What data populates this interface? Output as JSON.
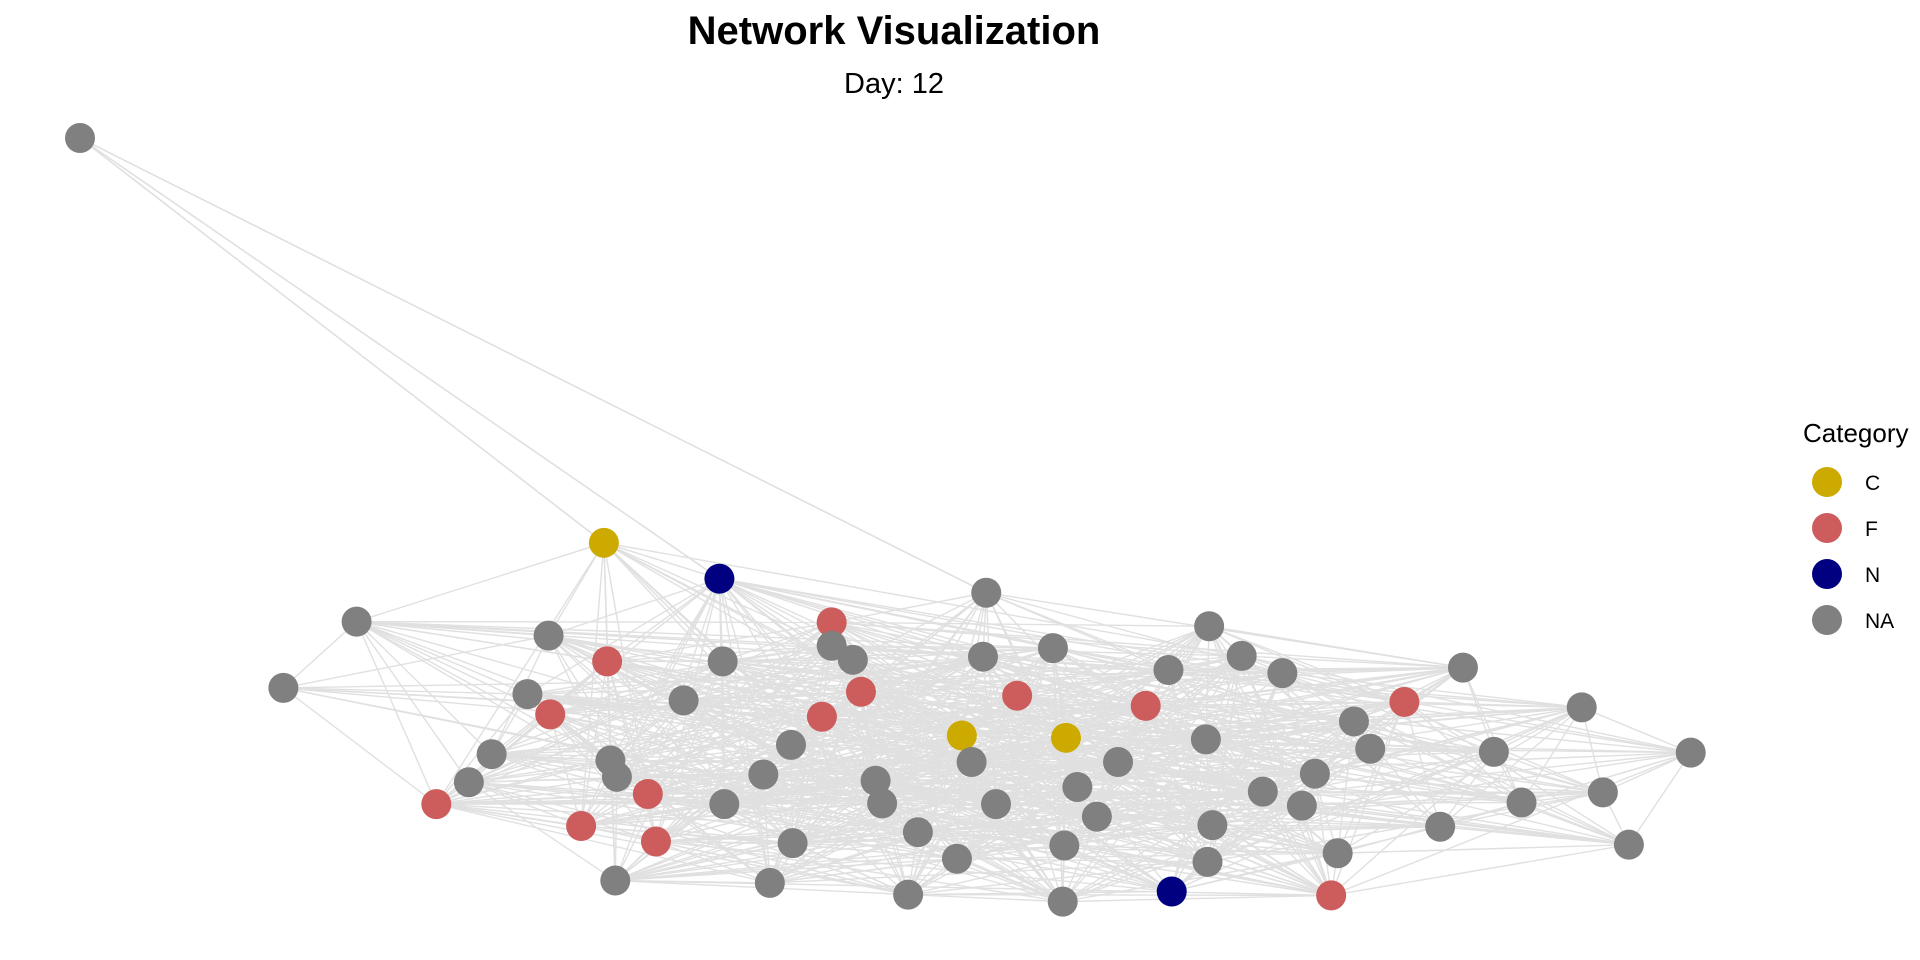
{
  "chart_data": {
    "type": "network",
    "title": "Network Visualization",
    "subtitle": "Day: 12",
    "legend": {
      "title": "Category",
      "position": "right",
      "entries": [
        {
          "label": "C",
          "color": "#CCAA00"
        },
        {
          "label": "F",
          "color": "#CD5C5C"
        },
        {
          "label": "N",
          "color": "#000080"
        },
        {
          "label": "NA",
          "color": "#808080"
        }
      ]
    },
    "edge_color": "#E0E0E0",
    "x_range": [
      0,
      100
    ],
    "y_range": [
      0,
      100
    ],
    "nodes": [
      {
        "id": 1,
        "x": 0.0,
        "y": 100.0,
        "category": "NA"
      },
      {
        "id": 2,
        "x": 32.2,
        "y": 48.1,
        "category": "C"
      },
      {
        "id": 3,
        "x": 39.3,
        "y": 43.5,
        "category": "N"
      },
      {
        "id": 4,
        "x": 55.7,
        "y": 41.7,
        "category": "NA"
      },
      {
        "id": 5,
        "x": 17.0,
        "y": 38.0,
        "category": "NA"
      },
      {
        "id": 6,
        "x": 28.8,
        "y": 36.2,
        "category": "NA"
      },
      {
        "id": 7,
        "x": 46.2,
        "y": 37.9,
        "category": "F"
      },
      {
        "id": 8,
        "x": 46.2,
        "y": 34.9,
        "category": "NA"
      },
      {
        "id": 9,
        "x": 69.4,
        "y": 37.4,
        "category": "NA"
      },
      {
        "id": 10,
        "x": 12.5,
        "y": 29.5,
        "category": "NA"
      },
      {
        "id": 11,
        "x": 32.4,
        "y": 32.9,
        "category": "F"
      },
      {
        "id": 12,
        "x": 39.5,
        "y": 32.9,
        "category": "NA"
      },
      {
        "id": 13,
        "x": 47.5,
        "y": 33.1,
        "category": "NA"
      },
      {
        "id": 14,
        "x": 55.5,
        "y": 33.5,
        "category": "NA"
      },
      {
        "id": 15,
        "x": 59.8,
        "y": 34.6,
        "category": "NA"
      },
      {
        "id": 16,
        "x": 71.4,
        "y": 33.6,
        "category": "NA"
      },
      {
        "id": 17,
        "x": 73.9,
        "y": 31.4,
        "category": "NA"
      },
      {
        "id": 18,
        "x": 85.0,
        "y": 32.1,
        "category": "NA"
      },
      {
        "id": 19,
        "x": 27.5,
        "y": 28.7,
        "category": "NA"
      },
      {
        "id": 20,
        "x": 48.0,
        "y": 29.0,
        "category": "F"
      },
      {
        "id": 21,
        "x": 57.6,
        "y": 28.5,
        "category": "F"
      },
      {
        "id": 22,
        "x": 66.9,
        "y": 31.8,
        "category": "NA"
      },
      {
        "id": 23,
        "x": 37.1,
        "y": 27.9,
        "category": "NA"
      },
      {
        "id": 24,
        "x": 65.5,
        "y": 27.2,
        "category": "F"
      },
      {
        "id": 25,
        "x": 81.4,
        "y": 27.7,
        "category": "F"
      },
      {
        "id": 26,
        "x": 92.3,
        "y": 27.0,
        "category": "NA"
      },
      {
        "id": 27,
        "x": 28.9,
        "y": 26.1,
        "category": "F"
      },
      {
        "id": 28,
        "x": 45.6,
        "y": 25.8,
        "category": "F"
      },
      {
        "id": 29,
        "x": 54.2,
        "y": 23.4,
        "category": "C"
      },
      {
        "id": 30,
        "x": 60.6,
        "y": 23.1,
        "category": "C"
      },
      {
        "id": 31,
        "x": 78.3,
        "y": 25.2,
        "category": "NA"
      },
      {
        "id": 32,
        "x": 25.3,
        "y": 21.0,
        "category": "NA"
      },
      {
        "id": 33,
        "x": 43.7,
        "y": 22.2,
        "category": "NA"
      },
      {
        "id": 34,
        "x": 69.2,
        "y": 22.9,
        "category": "NA"
      },
      {
        "id": 35,
        "x": 79.3,
        "y": 21.7,
        "category": "NA"
      },
      {
        "id": 36,
        "x": 86.9,
        "y": 21.3,
        "category": "NA"
      },
      {
        "id": 37,
        "x": 99.0,
        "y": 21.2,
        "category": "NA"
      },
      {
        "id": 38,
        "x": 32.6,
        "y": 20.2,
        "category": "NA"
      },
      {
        "id": 39,
        "x": 54.8,
        "y": 20.0,
        "category": "NA"
      },
      {
        "id": 40,
        "x": 63.8,
        "y": 20.0,
        "category": "NA"
      },
      {
        "id": 41,
        "x": 23.9,
        "y": 17.4,
        "category": "NA"
      },
      {
        "id": 42,
        "x": 33.0,
        "y": 18.1,
        "category": "NA"
      },
      {
        "id": 43,
        "x": 42.0,
        "y": 18.4,
        "category": "NA"
      },
      {
        "id": 44,
        "x": 48.9,
        "y": 17.6,
        "category": "NA"
      },
      {
        "id": 45,
        "x": 61.3,
        "y": 16.8,
        "category": "NA"
      },
      {
        "id": 46,
        "x": 75.9,
        "y": 18.5,
        "category": "NA"
      },
      {
        "id": 47,
        "x": 34.9,
        "y": 15.9,
        "category": "F"
      },
      {
        "id": 48,
        "x": 72.7,
        "y": 16.2,
        "category": "NA"
      },
      {
        "id": 49,
        "x": 93.6,
        "y": 16.1,
        "category": "NA"
      },
      {
        "id": 50,
        "x": 21.9,
        "y": 14.6,
        "category": "F"
      },
      {
        "id": 51,
        "x": 39.6,
        "y": 14.6,
        "category": "NA"
      },
      {
        "id": 52,
        "x": 49.3,
        "y": 14.7,
        "category": "NA"
      },
      {
        "id": 53,
        "x": 56.3,
        "y": 14.6,
        "category": "NA"
      },
      {
        "id": 54,
        "x": 75.1,
        "y": 14.4,
        "category": "NA"
      },
      {
        "id": 55,
        "x": 88.6,
        "y": 14.8,
        "category": "NA"
      },
      {
        "id": 56,
        "x": 62.5,
        "y": 13.0,
        "category": "NA"
      },
      {
        "id": 57,
        "x": 30.8,
        "y": 11.8,
        "category": "F"
      },
      {
        "id": 58,
        "x": 51.5,
        "y": 11.0,
        "category": "NA"
      },
      {
        "id": 59,
        "x": 69.6,
        "y": 11.9,
        "category": "NA"
      },
      {
        "id": 60,
        "x": 83.6,
        "y": 11.7,
        "category": "NA"
      },
      {
        "id": 61,
        "x": 35.4,
        "y": 9.8,
        "category": "F"
      },
      {
        "id": 62,
        "x": 43.8,
        "y": 9.6,
        "category": "NA"
      },
      {
        "id": 63,
        "x": 60.5,
        "y": 9.3,
        "category": "NA"
      },
      {
        "id": 64,
        "x": 95.2,
        "y": 9.4,
        "category": "NA"
      },
      {
        "id": 65,
        "x": 53.9,
        "y": 7.6,
        "category": "NA"
      },
      {
        "id": 66,
        "x": 69.3,
        "y": 7.2,
        "category": "NA"
      },
      {
        "id": 67,
        "x": 77.3,
        "y": 8.3,
        "category": "NA"
      },
      {
        "id": 68,
        "x": 32.9,
        "y": 4.8,
        "category": "NA"
      },
      {
        "id": 69,
        "x": 42.4,
        "y": 4.5,
        "category": "NA"
      },
      {
        "id": 70,
        "x": 50.9,
        "y": 3.0,
        "category": "NA"
      },
      {
        "id": 71,
        "x": 67.1,
        "y": 3.4,
        "category": "N"
      },
      {
        "id": 72,
        "x": 60.4,
        "y": 2.1,
        "category": "NA"
      },
      {
        "id": 73,
        "x": 76.9,
        "y": 2.9,
        "category": "F"
      }
    ]
  }
}
